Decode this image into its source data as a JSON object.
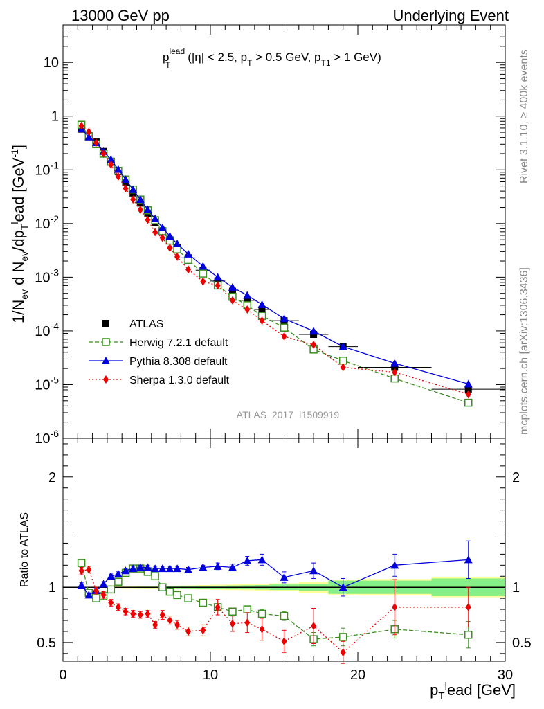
{
  "header": {
    "left": "13000 GeV pp",
    "right": "Underlying Event"
  },
  "plot_title": {
    "prefix": "p",
    "sub": "T",
    "sup": "lead",
    "rest": " (|η| < 2.5, p",
    "rest_sub": "T",
    "rest2": " > 0.5 GeV, p",
    "rest2_sub": "T1",
    "rest3": " > 1 GeV)"
  },
  "side_labels": {
    "rivet": "Rivet 3.1.10, ≥ 400k events",
    "mcplots": "mcplots.cern.ch [arXiv:1306.3436]"
  },
  "analysis_id": "ATLAS_2017_I1509919",
  "ylabel_main": "1/N_ev d N_ev/dp_T^lead [GeV^-1]",
  "ylabel_ratio": "Ratio to ATLAS",
  "xlabel": "p_T^lead [GeV]",
  "legend": [
    {
      "name": "ATLAS",
      "color": "#000000",
      "marker": "square-filled"
    },
    {
      "name": "Herwig 7.2.1 default",
      "color": "#3a8f1e",
      "marker": "square-open"
    },
    {
      "name": "Pythia 8.308 default",
      "color": "#0000dd",
      "marker": "triangle"
    },
    {
      "name": "Sherpa 1.3.0 default",
      "color": "#ee0000",
      "marker": "diamond"
    }
  ],
  "chart_data": {
    "type": "scatter",
    "xlim": [
      0,
      30
    ],
    "ylim_main": [
      1e-06,
      50
    ],
    "ylim_ratio": [
      0.33,
      2.35
    ],
    "log_y_main": true,
    "x_ticks": [
      "0",
      "10",
      "20",
      "30"
    ],
    "y_ticks_main": [
      "10^-6",
      "10^-5",
      "10^-4",
      "10^-3",
      "10^-2",
      "10^-1",
      "1",
      "10"
    ],
    "y_ticks_ratio": [
      "0.5",
      "1",
      "2"
    ],
    "x": [
      1.25,
      1.75,
      2.25,
      2.75,
      3.25,
      3.75,
      4.25,
      4.75,
      5.25,
      5.75,
      6.25,
      6.75,
      7.25,
      7.75,
      8.5,
      9.5,
      10.5,
      11.5,
      12.5,
      13.5,
      15.0,
      17.0,
      19.0,
      22.5,
      27.5
    ],
    "atlas_bins": [
      [
        1,
        1.5
      ],
      [
        1.5,
        2
      ],
      [
        2,
        2.5
      ],
      [
        2.5,
        3
      ],
      [
        3,
        3.5
      ],
      [
        3.5,
        4
      ],
      [
        4,
        4.5
      ],
      [
        4.5,
        5
      ],
      [
        5,
        5.5
      ],
      [
        5.5,
        6
      ],
      [
        6,
        6.5
      ],
      [
        6.5,
        7
      ],
      [
        7,
        7.5
      ],
      [
        7.5,
        8
      ],
      [
        8,
        9
      ],
      [
        9,
        10
      ],
      [
        10,
        11
      ],
      [
        11,
        12
      ],
      [
        12,
        13
      ],
      [
        13,
        14
      ],
      [
        14,
        16
      ],
      [
        16,
        18
      ],
      [
        18,
        20
      ],
      [
        20,
        25
      ],
      [
        25,
        30
      ]
    ],
    "series": [
      {
        "name": "ATLAS",
        "values": [
          0.57,
          0.44,
          0.33,
          0.22,
          0.145,
          0.092,
          0.058,
          0.037,
          0.024,
          0.0155,
          0.0105,
          0.0072,
          0.005,
          0.0036,
          0.0023,
          0.00135,
          0.00085,
          0.00055,
          0.00037,
          0.00025,
          0.000155,
          8.6e-05,
          5.1e-05,
          2.1e-05,
          8.2e-06
        ]
      },
      {
        "name": "Herwig 7.2.1 default",
        "values": [
          0.69,
          0.42,
          0.3,
          0.2,
          0.141,
          0.096,
          0.066,
          0.043,
          0.028,
          0.0176,
          0.0115,
          0.0072,
          0.0048,
          0.0033,
          0.0021,
          0.00117,
          0.0007,
          0.00043,
          0.0003,
          0.00019,
          0.000115,
          4.5e-05,
          2.8e-05,
          1.3e-05,
          4.6e-06
        ]
      },
      {
        "name": "Pythia 8.308 default",
        "values": [
          0.58,
          0.41,
          0.32,
          0.22,
          0.156,
          0.102,
          0.066,
          0.043,
          0.028,
          0.0182,
          0.0123,
          0.0084,
          0.0058,
          0.0042,
          0.0027,
          0.0016,
          0.001,
          0.00065,
          0.00046,
          0.00031,
          0.000169,
          9.9e-05,
          5.1e-05,
          2.5e-05,
          1.03e-05
        ]
      },
      {
        "name": "Sherpa 1.3.0 default",
        "values": [
          0.66,
          0.51,
          0.32,
          0.2,
          0.125,
          0.075,
          0.045,
          0.028,
          0.018,
          0.0117,
          0.0069,
          0.0054,
          0.0035,
          0.0024,
          0.00139,
          0.00083,
          0.0007,
          0.00037,
          0.00025,
          0.000155,
          7.9e-05,
          5.5e-05,
          2.1e-05,
          1.7e-05,
          6.6e-06
        ]
      }
    ],
    "ratio": {
      "herwig": [
        1.22,
        0.95,
        0.9,
        0.92,
        0.98,
        1.05,
        1.13,
        1.17,
        1.17,
        1.14,
        1.1,
        1.0,
        0.96,
        0.93,
        0.9,
        0.86,
        0.82,
        0.78,
        0.8,
        0.76,
        0.74,
        0.53,
        0.55,
        0.62,
        0.57
      ],
      "pythia": [
        1.02,
        0.93,
        0.97,
        1.03,
        1.1,
        1.12,
        1.15,
        1.17,
        1.18,
        1.18,
        1.17,
        1.17,
        1.17,
        1.17,
        1.16,
        1.18,
        1.19,
        1.18,
        1.24,
        1.25,
        1.09,
        1.15,
        1.0,
        1.2,
        1.25
      ],
      "sherpa": [
        1.15,
        1.16,
        0.97,
        0.93,
        0.86,
        0.82,
        0.78,
        0.76,
        0.75,
        0.76,
        0.66,
        0.75,
        0.7,
        0.66,
        0.6,
        0.61,
        0.82,
        0.67,
        0.68,
        0.62,
        0.51,
        0.65,
        0.41,
        0.82,
        0.82
      ],
      "herwig_err": [
        0.02,
        0.02,
        0.02,
        0.02,
        0.02,
        0.02,
        0.02,
        0.02,
        0.02,
        0.02,
        0.02,
        0.02,
        0.02,
        0.02,
        0.02,
        0.02,
        0.03,
        0.03,
        0.03,
        0.04,
        0.04,
        0.06,
        0.08,
        0.08,
        0.12
      ],
      "pythia_err": [
        0.02,
        0.02,
        0.02,
        0.02,
        0.02,
        0.02,
        0.02,
        0.02,
        0.02,
        0.02,
        0.02,
        0.02,
        0.02,
        0.02,
        0.02,
        0.02,
        0.03,
        0.03,
        0.04,
        0.05,
        0.05,
        0.07,
        0.08,
        0.1,
        0.17
      ],
      "sherpa_err": [
        0.03,
        0.03,
        0.03,
        0.03,
        0.03,
        0.03,
        0.03,
        0.03,
        0.03,
        0.03,
        0.03,
        0.04,
        0.04,
        0.04,
        0.04,
        0.05,
        0.07,
        0.07,
        0.09,
        0.1,
        0.1,
        0.16,
        0.1,
        0.25,
        0.18
      ],
      "band_inner": [
        0.003,
        0.003,
        0.003,
        0.003,
        0.003,
        0.004,
        0.005,
        0.005,
        0.006,
        0.006,
        0.006,
        0.007,
        0.008,
        0.009,
        0.01,
        0.012,
        0.014,
        0.016,
        0.018,
        0.02,
        0.025,
        0.03,
        0.06,
        0.06,
        0.08
      ],
      "band_outer": [
        0.004,
        0.004,
        0.005,
        0.005,
        0.006,
        0.007,
        0.008,
        0.009,
        0.01,
        0.011,
        0.012,
        0.013,
        0.014,
        0.015,
        0.017,
        0.02,
        0.023,
        0.025,
        0.027,
        0.03,
        0.035,
        0.05,
        0.07,
        0.075,
        0.09
      ]
    }
  }
}
